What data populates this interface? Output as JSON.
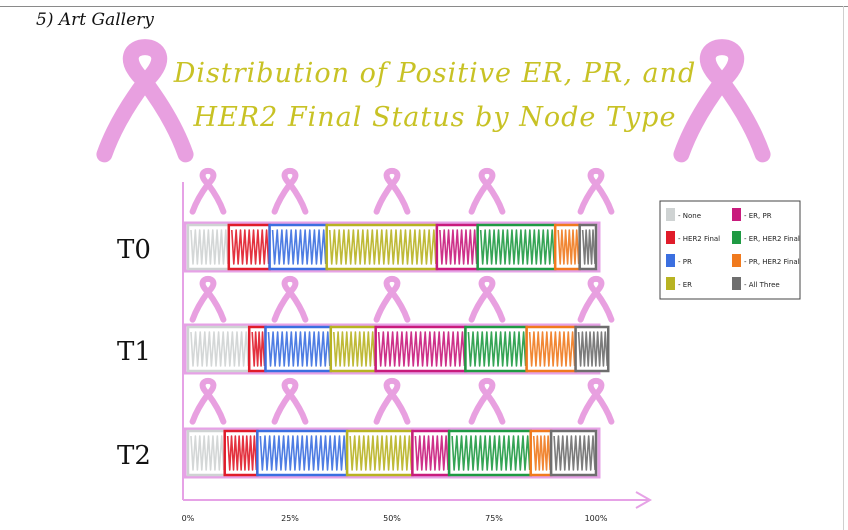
{
  "page": {
    "heading": "5) Art Gallery"
  },
  "chart_data": {
    "type": "bar",
    "stacked": true,
    "orientation": "horizontal",
    "title": "Distribution of Positive ER, PR, and HER2 Final Status by Node Type",
    "categories": [
      "T0",
      "T1",
      "T2"
    ],
    "xlim": [
      0,
      100
    ],
    "xticks": [
      "0%",
      "25%",
      "50%",
      "75%",
      "100%"
    ],
    "legend_position": "right",
    "series": [
      {
        "name": "- None",
        "color": "#cfd3d3",
        "values": [
          10,
          15,
          9
        ]
      },
      {
        "name": "- HER2 Final",
        "color": "#e01c2a",
        "values": [
          10,
          4,
          8
        ]
      },
      {
        "name": "- PR",
        "color": "#3b6fe0",
        "values": [
          14,
          16,
          22
        ]
      },
      {
        "name": "- ER",
        "color": "#b8b322",
        "values": [
          27,
          11,
          16
        ]
      },
      {
        "name": "- ER, PR",
        "color": "#c81b7c",
        "values": [
          10,
          22,
          9
        ]
      },
      {
        "name": "- ER, HER2 Final",
        "color": "#1f9a43",
        "values": [
          19,
          15,
          20
        ]
      },
      {
        "name": "- PR, HER2 Final",
        "color": "#f07a1e",
        "values": [
          6,
          12,
          5
        ]
      },
      {
        "name": "- All Three",
        "color": "#6e6e6e",
        "values": [
          4,
          8,
          11
        ]
      }
    ]
  },
  "decor": {
    "ribbon_color": "#e8a0e0",
    "axis_color": "#e6a2e6"
  }
}
